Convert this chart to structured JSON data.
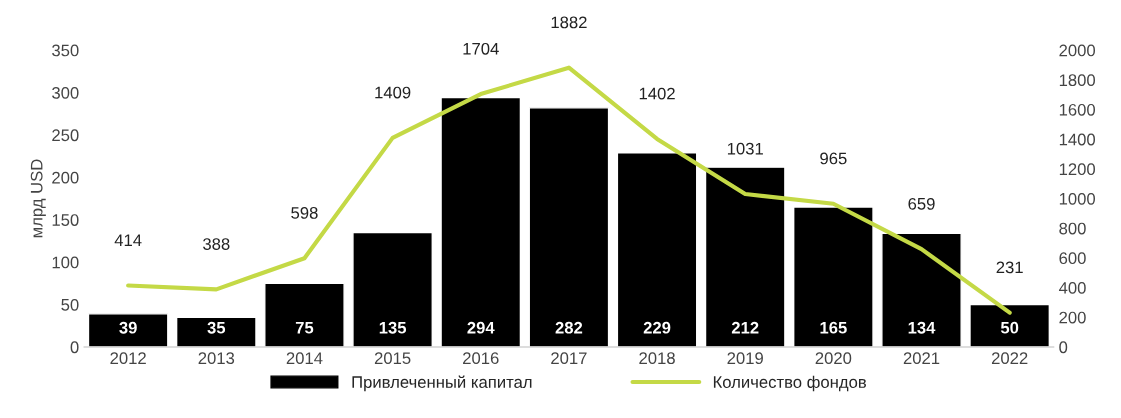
{
  "chart_data": {
    "type": "bar",
    "categories": [
      "2012",
      "2013",
      "2014",
      "2015",
      "2016",
      "2017",
      "2018",
      "2019",
      "2020",
      "2021",
      "2022"
    ],
    "series": [
      {
        "name": "Привлеченный капитал",
        "color": "#000000",
        "values": [
          39,
          35,
          75,
          135,
          294,
          282,
          229,
          212,
          165,
          134,
          50
        ]
      },
      {
        "name": "Количество фондов",
        "type": "line",
        "axis": "y2",
        "color": "#c4d946",
        "values": [
          414,
          388,
          598,
          1409,
          1704,
          1882,
          1402,
          1031,
          965,
          659,
          231
        ]
      }
    ],
    "ylabel": "млрд USD",
    "ylim": [
      0,
      350
    ],
    "yticks": [
      0,
      50,
      100,
      150,
      200,
      250,
      300,
      350
    ],
    "y2lim": [
      0,
      2000
    ],
    "y2ticks": [
      0,
      200,
      400,
      600,
      800,
      1000,
      1200,
      1400,
      1600,
      1800,
      2000
    ],
    "data_labels": true,
    "legend": "bottom",
    "grid": false,
    "marker": "none",
    "line_style": "solid"
  }
}
